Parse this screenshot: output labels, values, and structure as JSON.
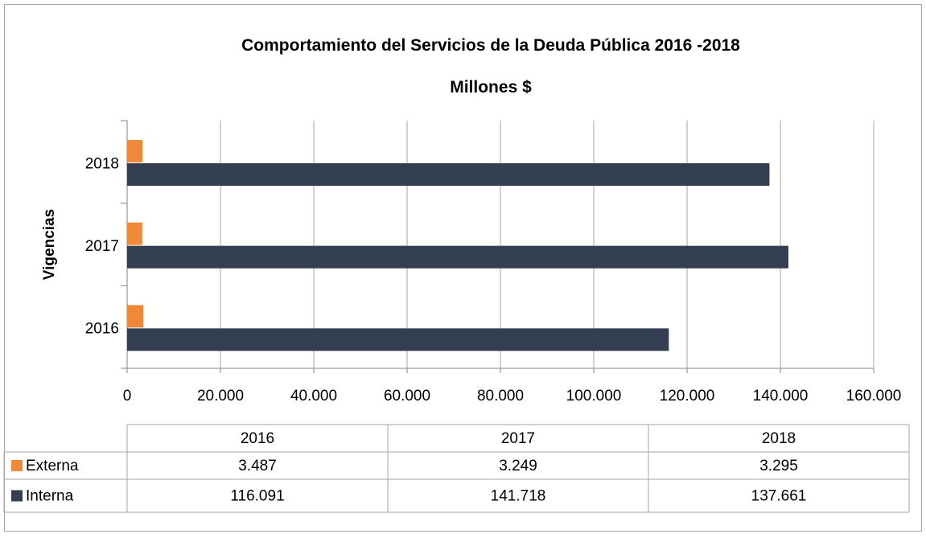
{
  "chart_data": {
    "type": "bar",
    "orientation": "horizontal",
    "title": "Comportamiento del Servicios de la Deuda Pública 2016 -2018",
    "subtitle": "Millones $",
    "y_label": "Vigencias",
    "categories": [
      "2016",
      "2017",
      "2018"
    ],
    "series": [
      {
        "name": "Externa",
        "color": "#f0883a",
        "values": [
          3487,
          3249,
          3295
        ],
        "value_labels": [
          "3.487",
          "3.249",
          "3.295"
        ]
      },
      {
        "name": "Interna",
        "color": "#333f50",
        "values": [
          116091,
          141718,
          137661
        ],
        "value_labels": [
          "116.091",
          "141.718",
          "137.661"
        ]
      }
    ],
    "xlim": [
      0,
      160000
    ],
    "xticks": [
      0,
      {
        "value": 20000,
        "label": "20.000"
      },
      {
        "value": 40000,
        "label": "40.000"
      },
      {
        "value": 60000,
        "label": "60.000"
      },
      {
        "value": 80000,
        "label": "80.000"
      },
      {
        "value": 100000,
        "label": "100.000"
      },
      {
        "value": 120000,
        "label": "120.000"
      },
      {
        "value": 140000,
        "label": "140.000"
      },
      {
        "value": 160000,
        "label": "160.000"
      }
    ],
    "grid": true
  }
}
